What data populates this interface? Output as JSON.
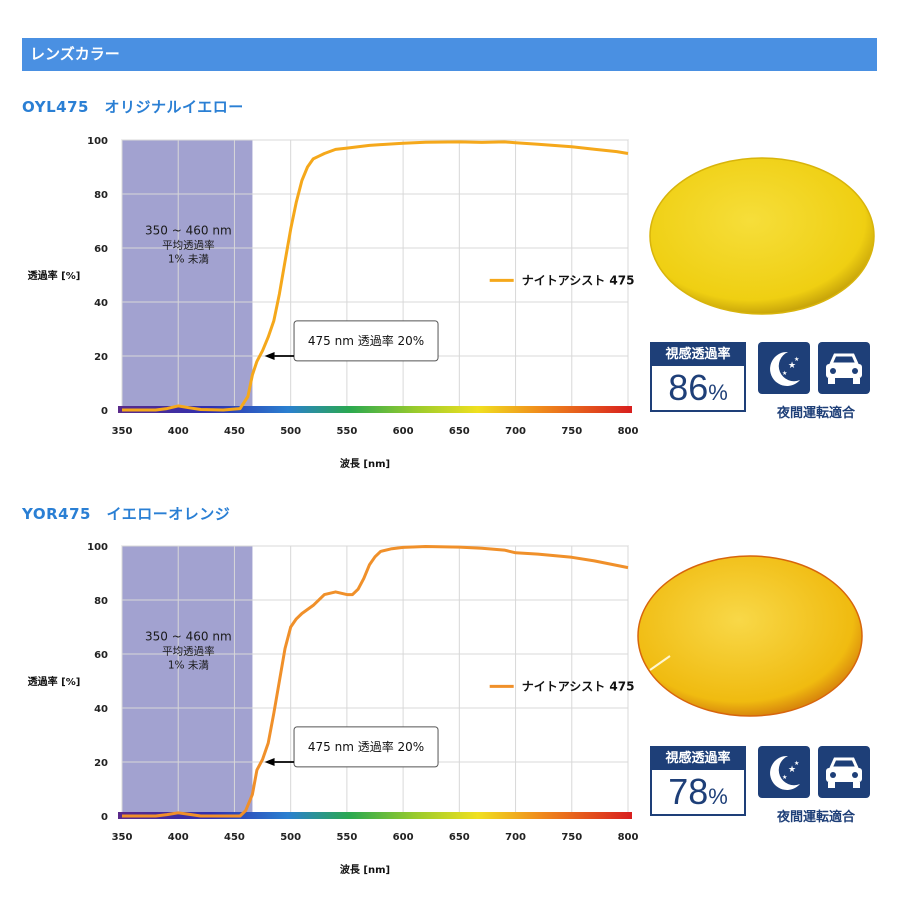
{
  "header": {
    "title": "レンズカラー"
  },
  "icon_color": "#1e3f78",
  "chart_data": [
    {
      "section_title": "OYL475　オリジナルイエロー",
      "type": "line",
      "xlabel": "波長 [nm]",
      "ylabel": "透過率 [%]",
      "x_ticks": [
        "350",
        "400",
        "450",
        "500",
        "550",
        "600",
        "650",
        "700",
        "750",
        "800"
      ],
      "y_ticks": [
        "0",
        "20",
        "40",
        "60",
        "80",
        "100"
      ],
      "xlim": [
        350,
        800
      ],
      "ylim": [
        0,
        100
      ],
      "shaded_band": {
        "from": 350,
        "to": 466,
        "color": "#9d9dcd"
      },
      "band_annotation": [
        "350 ~ 460 nm",
        "平均透過率",
        "1% 未満"
      ],
      "callout": {
        "text": "475 nm 透過率 20%",
        "x": 475,
        "y": 20
      },
      "legend": "ナイトアシスト 475",
      "series": [
        {
          "name": "ナイトアシスト 475",
          "color": "#f5a81b",
          "x": [
            350,
            380,
            390,
            400,
            410,
            420,
            440,
            455,
            462,
            466,
            470,
            475,
            480,
            485,
            490,
            495,
            500,
            505,
            510,
            515,
            520,
            525,
            530,
            540,
            550,
            560,
            570,
            580,
            600,
            620,
            650,
            670,
            690,
            700,
            720,
            750,
            770,
            790,
            800
          ],
          "y": [
            0,
            0,
            0.5,
            1.5,
            0.8,
            0.2,
            0,
            0.5,
            5,
            13,
            18,
            22,
            27,
            33,
            43,
            55,
            67,
            77,
            85,
            90,
            93,
            94,
            95,
            96.5,
            97,
            97.5,
            98,
            98.3,
            98.8,
            99.2,
            99.3,
            99.1,
            99.3,
            99,
            98.4,
            97.5,
            96.6,
            95.7,
            95
          ]
        }
      ],
      "lens_color": "#f2d21b",
      "visual_transmittance_label": "視感透過率",
      "visual_transmittance_value": "86",
      "visual_transmittance_unit": "%",
      "night_driving_label": "夜間運転適合"
    },
    {
      "section_title": "YOR475　イエローオレンジ",
      "type": "line",
      "xlabel": "波長 [nm]",
      "ylabel": "透過率 [%]",
      "x_ticks": [
        "350",
        "400",
        "450",
        "500",
        "550",
        "600",
        "650",
        "700",
        "750",
        "800"
      ],
      "y_ticks": [
        "0",
        "20",
        "40",
        "60",
        "80",
        "100"
      ],
      "xlim": [
        350,
        800
      ],
      "ylim": [
        0,
        100
      ],
      "shaded_band": {
        "from": 350,
        "to": 466,
        "color": "#9d9dcd"
      },
      "band_annotation": [
        "350 ~ 460 nm",
        "平均透過率",
        "1% 未満"
      ],
      "callout": {
        "text": "475 nm 透過率 20%",
        "x": 475,
        "y": 20
      },
      "legend": "ナイトアシスト 475",
      "series": [
        {
          "name": "ナイトアシスト 475",
          "color": "#f0902a",
          "x": [
            350,
            380,
            390,
            400,
            410,
            420,
            440,
            455,
            460,
            466,
            470,
            475,
            480,
            485,
            490,
            495,
            500,
            505,
            510,
            520,
            530,
            540,
            550,
            555,
            560,
            565,
            570,
            575,
            580,
            590,
            600,
            620,
            650,
            670,
            690,
            700,
            720,
            750,
            770,
            800
          ],
          "y": [
            0,
            0,
            0.5,
            1.2,
            0.6,
            0,
            0,
            0,
            2,
            8,
            17,
            21,
            27,
            38,
            50,
            62,
            70,
            73,
            75,
            78,
            82,
            83,
            82,
            82,
            84,
            88,
            93,
            96,
            98,
            99,
            99.5,
            99.8,
            99.6,
            99.2,
            98.5,
            97.5,
            97,
            95.8,
            94.5,
            92
          ]
        }
      ],
      "lens_color": "#f5c414",
      "visual_transmittance_label": "視感透過率",
      "visual_transmittance_value": "78",
      "visual_transmittance_unit": "%",
      "night_driving_label": "夜間運転適合"
    }
  ]
}
